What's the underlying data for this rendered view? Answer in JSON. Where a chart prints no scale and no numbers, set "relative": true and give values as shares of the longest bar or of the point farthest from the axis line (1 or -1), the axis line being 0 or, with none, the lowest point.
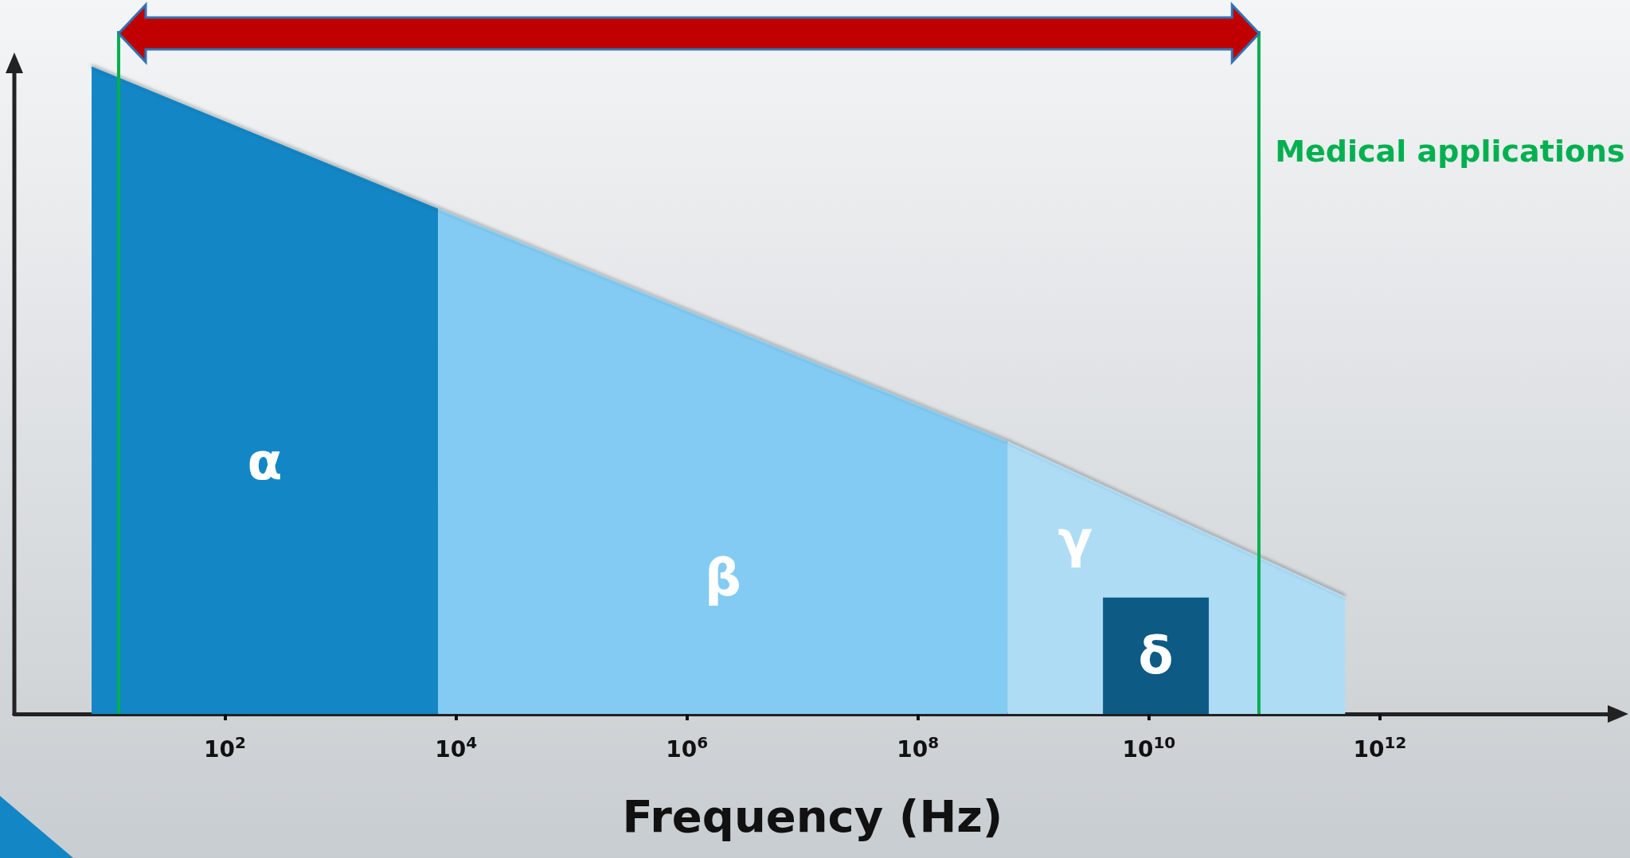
{
  "chart_data": {
    "type": "area",
    "relative": true,
    "xlabel": "Frequency (Hz)",
    "log": "x",
    "xlim": [
      1.5,
      100000000000000.0
    ],
    "xticks": [
      {
        "value": 100,
        "label": "10$^{2}$"
      },
      {
        "value": 10000,
        "label": "10$^{4}$"
      },
      {
        "value": 1000000,
        "label": "10$^{6}$"
      },
      {
        "value": 100000000,
        "label": "10$^{8}$"
      },
      {
        "value": 10000000000,
        "label": "10$^{10}$"
      },
      {
        "value": 1000000000000,
        "label": "10$^{12}$"
      }
    ],
    "series": [
      {
        "name": "α",
        "color": "#1386c5",
        "x": [
          7,
          7000
        ],
        "values": [
          1,
          0.78
        ]
      },
      {
        "name": "β",
        "color": "#83cbf2",
        "x": [
          7000,
          600000000
        ],
        "values": [
          0.78,
          0.42
        ]
      },
      {
        "name": "γ",
        "color": "#aedcf5",
        "x": [
          600000000,
          500000000000
        ],
        "values": [
          0.42,
          0.18
        ]
      },
      {
        "name": "δ",
        "color": "#0d5a84",
        "x": [
          4000000000,
          33000000000
        ],
        "values": [
          0.18,
          0.18
        ]
      }
    ],
    "ref_lines": [
      {
        "axis": "x",
        "value": 12,
        "label": null,
        "color": "#00b050"
      },
      {
        "axis": "x",
        "value": 90000000000,
        "label": "Medical applications",
        "color": "#00b050"
      }
    ],
    "grid": false,
    "legend": false,
    "marker": "none"
  }
}
